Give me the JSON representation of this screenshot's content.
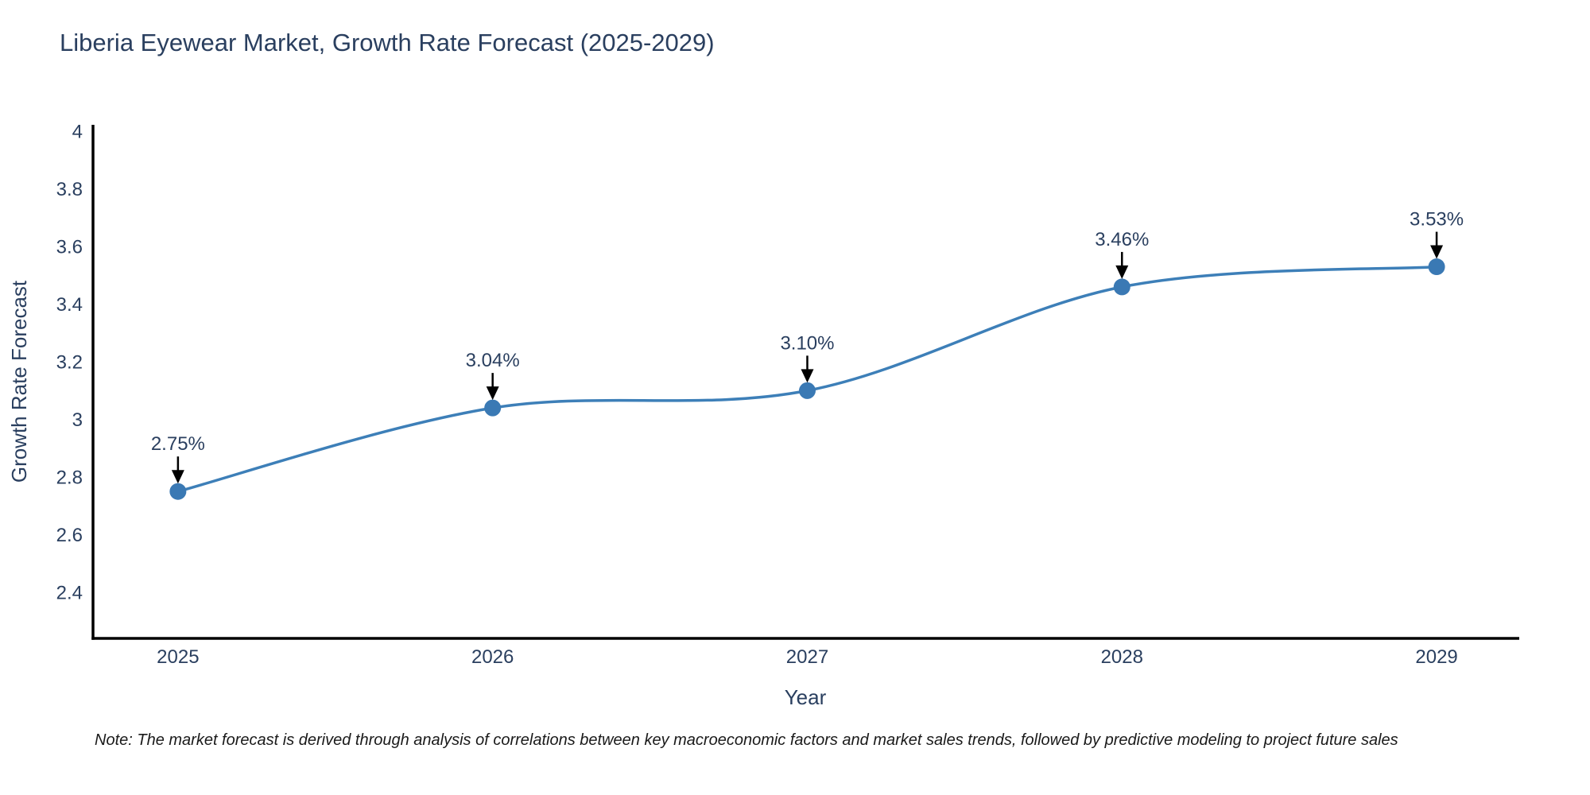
{
  "title": "Liberia Eyewear Market, Growth Rate Forecast (2025-2029)",
  "note": "Note: The market forecast is derived through analysis of correlations between key macroeconomic factors and market sales trends, followed by predictive modeling to project future sales",
  "chart_data": {
    "type": "line",
    "line_shape": "spline",
    "title": "Liberia Eyewear Market, Growth Rate Forecast (2025-2029)",
    "xlabel": "Year",
    "ylabel": "Growth Rate Forecast",
    "x": [
      2025,
      2026,
      2027,
      2028,
      2029
    ],
    "x_tick_labels": [
      "2025",
      "2026",
      "2027",
      "2028",
      "2029"
    ],
    "y": [
      2.75,
      3.04,
      3.1,
      3.46,
      3.53
    ],
    "point_labels": [
      "2.75%",
      "3.04%",
      "3.10%",
      "3.46%",
      "3.53%"
    ],
    "y_ticks": [
      {
        "value": 4.0,
        "label": "4"
      },
      {
        "value": 3.8,
        "label": "3.8"
      },
      {
        "value": 3.6,
        "label": "3.6"
      },
      {
        "value": 3.4,
        "label": "3.4"
      },
      {
        "value": 3.2,
        "label": "3.2"
      },
      {
        "value": 3.0,
        "label": "3"
      },
      {
        "value": 2.8,
        "label": "2.8"
      },
      {
        "value": 2.6,
        "label": "2.6"
      },
      {
        "value": 2.4,
        "label": "2.4"
      }
    ],
    "xlim": [
      2024.73,
      2029.26
    ],
    "ylim": [
      2.24,
      4.02
    ],
    "grid": false,
    "legend": "none",
    "annotations_have_arrows": true,
    "colors": {
      "line": "#3d7fb8",
      "marker": "#3a79b4",
      "arrow": "#000000",
      "axis": "#000000",
      "title": "#2a3f5f",
      "tick": "#2a3f5f",
      "note": "#1a1a1a",
      "background": "#ffffff"
    }
  }
}
